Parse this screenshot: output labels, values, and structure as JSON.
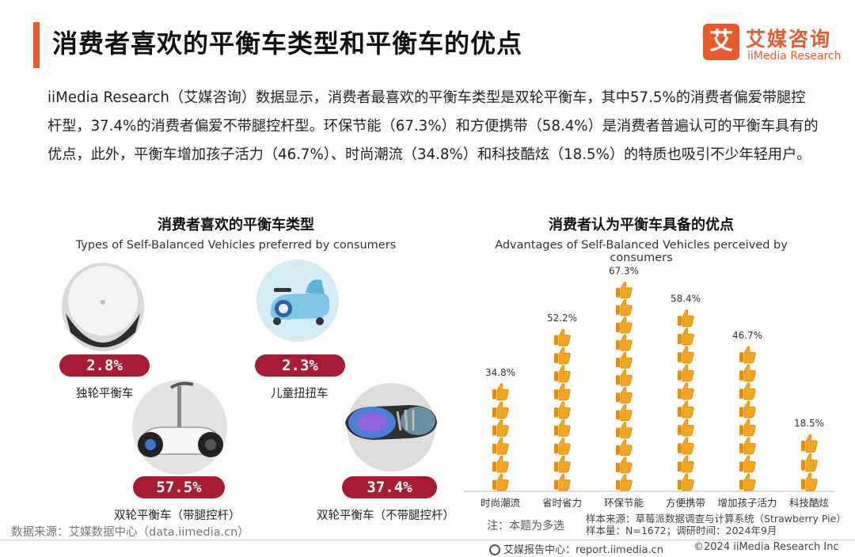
{
  "header": {
    "title": "消费者喜欢的平衡车类型和平衡车的优点",
    "logo_mark": "艾",
    "logo_cn": "艾媒咨询",
    "logo_en": "iiMedia Research"
  },
  "intro": "iiMedia Research（艾媒咨询）数据显示，消费者最喜欢的平衡车类型是双轮平衡车，其中57.5%的消费者偏爱带腿控杆型，37.4%的消费者偏爱不带腿控杆型。环保节能（67.3%）和方便携带（58.4%）是消费者普遍认可的平衡车具有的优点，此外，平衡车增加孩子活力（46.7%）、时尚潮流（34.8%）和科技酷炫（18.5%）的特质也吸引不少年轻用户。",
  "left_section": {
    "title": "消费者喜欢的平衡车类型",
    "subtitle": "Types of Self-Balanced Vehicles preferred by consumers",
    "items": [
      {
        "pct": "2.8%",
        "label": "独轮平衡车"
      },
      {
        "pct": "2.3%",
        "label": "儿童扭扭车"
      },
      {
        "pct": "57.5%",
        "label": "双轮平衡车（带腿控杆）"
      },
      {
        "pct": "37.4%",
        "label": "双轮平衡车（不带腿控杆）"
      }
    ]
  },
  "right_section": {
    "title": "消费者认为平衡车具备的优点",
    "subtitle": "Advantages of Self-Balanced Vehicles perceived by consumers"
  },
  "chart_data": {
    "type": "bar",
    "categories": [
      "时尚潮流",
      "省时省力",
      "环保节能",
      "方便携带",
      "增加孩子活力",
      "科技酷炫"
    ],
    "values": [
      34.8,
      52.2,
      67.3,
      58.4,
      46.7,
      18.5
    ],
    "data_labels": [
      "34.8%",
      "52.2%",
      "67.3%",
      "58.4%",
      "46.7%",
      "18.5%"
    ],
    "ylim": [
      0,
      70
    ],
    "marker": "thumbs-up-icon",
    "bar_color": "#f2a623"
  },
  "notes": {
    "source": "数据来源：艾媒数据中心（data.iimedia.cn）",
    "note": "注：本题为多选",
    "sample_line1": "样本来源：草莓派数据调查与计算系统（Strawberry Pie）",
    "sample_line2": "样本量：N=1672；调研时间：2024年9月"
  },
  "footer": {
    "left": "艾媒报告中心：report.iimedia.cn",
    "right": "©2024  iiMedia Research  Inc"
  },
  "colors": {
    "accent": "#e95a2b",
    "badge": "#a71c32"
  }
}
